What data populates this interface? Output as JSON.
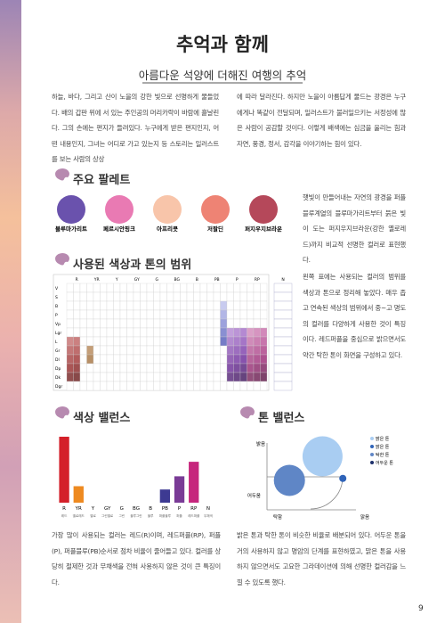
{
  "header": {
    "title": "추억과 함께",
    "subtitle": "아름다운 석양에 더해진 여행의 추억"
  },
  "intro": {
    "left": "하늘, 바다, 그리고 산이 노을의 강한 빛으로 선명하게 물들었다. 배의 갑판 위에 서 있는 주인공의 머리카락이 바람에 흩날린다. 그의 손에는 편지가 들려있다. 누구에게 받은 편지인지, 어떤 내용인지, 그녀는 어디로 가고 있는지 등 스토리는 일러스트를 보는 사람의 상상",
    "right": "에 따라 달라진다. 하지만 노을이 아름답게 물드는 광경은 누구에게나 똑같이 전달되며, 일러스트가 불러일으키는 서정성에 많은 사람이 공감할 것이다. 이렇게 배색에는 심금을 울리는 힘과 자연, 풍경, 정서, 감각을 이야기하는 힘이 있다."
  },
  "palette": {
    "heading": "주요 팔레트",
    "colors": [
      {
        "name": "블루마가리트",
        "color": "#6a52ad"
      },
      {
        "name": "페르시안핑크",
        "color": "#e97ab3"
      },
      {
        "name": "아프리콧",
        "color": "#f8c5aa"
      },
      {
        "name": "저팔딘",
        "color": "#ee8374"
      },
      {
        "name": "퍼지우지브라운",
        "color": "#b5485a"
      }
    ],
    "description": "햇빛이 만들어내는 자연의 광경을 퍼플블루계열의 블루마가리트부터 붉은 빛이 도는 퍼지우지브라운(강한 옐로레드)까지 비교적 선명한 컬러로 표현했다."
  },
  "tone_range": {
    "heading": "사용된 색상과 톤의 범위",
    "hues": [
      "R",
      "YR",
      "Y",
      "GY",
      "G",
      "BG",
      "B",
      "PB",
      "P",
      "RP"
    ],
    "tones": [
      "V",
      "S",
      "B",
      "P",
      "Vp",
      "Lgr",
      "L",
      "Gr",
      "Dl",
      "Dp",
      "Dk",
      "Dgr"
    ],
    "neutral": "N",
    "description": "왼쪽 표에는 사용되는 컬러의 범위를 색상과 톤으로 정리해 놓았다. 매우 좁고 연속된 색상의 범위에서 중~고 명도의 컬러를 다양하게 사용한 것이 특징이다. 레드퍼플을 중심으로 밝으면서도 약간 탁한 톤이 화면을 구성하고 있다."
  },
  "chart_data": [
    {
      "type": "bar",
      "title": "색상 밸런스",
      "categories": [
        "R",
        "YR",
        "Y",
        "GY",
        "G",
        "BG",
        "B",
        "PB",
        "P",
        "RP",
        "N"
      ],
      "category_names": [
        "레드",
        "옐로레드",
        "옐로",
        "그린옐로",
        "그린",
        "블루그린",
        "블루",
        "퍼플블루",
        "퍼플",
        "레드퍼플",
        "무채색"
      ],
      "values": [
        100,
        25,
        0,
        0,
        0,
        0,
        0,
        20,
        40,
        62,
        0
      ],
      "colors": [
        "#d4202a",
        "#ee8a20",
        "#f4d21e",
        "#a8c83a",
        "#3aa548",
        "#21a39a",
        "#2b7bc0",
        "#3d3a92",
        "#7a3b96",
        "#c6267d",
        "#888888"
      ],
      "ylim": [
        0,
        100
      ],
      "caption": "가장 많이 사용되는 컬러는 레드(R)이며, 레드퍼플(RP), 퍼플(P), 퍼플블루(PB)순서로 점차 비율이 줄어들고 있다. 컬러를 상당히 절제한 것과 무채색을 전혀 사용하지 않은 것이 큰 특징이다."
    },
    {
      "type": "bubble",
      "title": "톤 밸런스",
      "y_label_top": "밝음",
      "y_label_bottom": "어두움",
      "x_label_left": "탁함",
      "x_label_right": "맑음",
      "xlim": [
        0,
        1
      ],
      "ylim": [
        0,
        1
      ],
      "series": [
        {
          "name": "밝은 톤",
          "color": "#a9cdf2",
          "x": 0.52,
          "y": 0.8,
          "size": 45
        },
        {
          "name": "맑은 톤",
          "color": "#2f63b8",
          "x": 0.71,
          "y": 0.47,
          "size": 8
        },
        {
          "name": "탁한 톤",
          "color": "#5f86c6",
          "x": 0.21,
          "y": 0.44,
          "size": 35
        },
        {
          "name": "어두운 톤",
          "color": "#1c2f6a",
          "x": null,
          "y": null,
          "size": null
        }
      ],
      "caption": "밝은 톤과 탁한 톤이 비슷한 비율로 배분되어 있다. 어두운 톤을 거의 사용하지 않고 명암의 단계를 표현하였고, 맑은 톤을 사용하지 않으면서도 고요한 그라데이션에 의해 선명한 컬러감을 느낄 수 있도록 했다."
    }
  ],
  "page_number": "9"
}
